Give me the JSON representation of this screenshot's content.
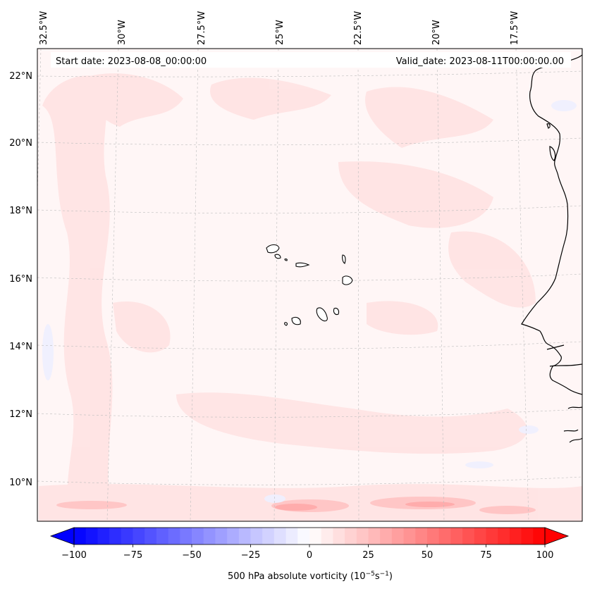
{
  "map": {
    "start_label": "Start date: 2023-08-08_00:00:00",
    "valid_label": "Valid_date: 2023-08-11T00:00:00.00",
    "lon_labels": [
      "32.5°W",
      "30°W",
      "27.5°W",
      "25°W",
      "22.5°W",
      "20°W",
      "17.5°W"
    ],
    "lat_labels": [
      "22°N",
      "20°N",
      "18°N",
      "16°N",
      "14°N",
      "12°N",
      "10°N"
    ],
    "colorbar": {
      "label_prefix": "500 hPa absolute vorticity (10",
      "label_exp1": "−5",
      "label_mid": "s",
      "label_exp2": "−1",
      "label_suffix": ")",
      "ticks": [
        "−100",
        "−75",
        "−50",
        "−25",
        "0",
        "25",
        "50",
        "75",
        "100"
      ],
      "range": [
        -100,
        100
      ],
      "colors": {
        "negative": "#0000ff",
        "neutral": "#ffffff",
        "positive": "#ff0000"
      }
    },
    "field_base_color": "#fff5f5",
    "coastline_color": "#000000",
    "grid_color": "#b4b4b4"
  }
}
